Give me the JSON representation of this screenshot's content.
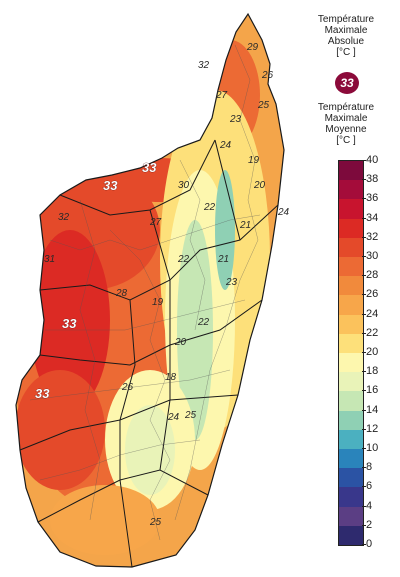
{
  "legend": {
    "abs_title": "Température\nMaximale\nAbsolue\n[°C ]",
    "abs_badge": "33",
    "mean_title": "Température\nMaximale\nMoyenne\n[°C ]",
    "ticks": [
      "40",
      "38",
      "36",
      "34",
      "32",
      "30",
      "28",
      "26",
      "24",
      "22",
      "20",
      "18",
      "16",
      "14",
      "12",
      "10",
      "8",
      "6",
      "4",
      "2",
      "0"
    ],
    "colors": [
      "#7d0a3c",
      "#a40c3a",
      "#c8142e",
      "#dc2a24",
      "#e44a2a",
      "#ec6a34",
      "#f18a3c",
      "#f7a64a",
      "#fbc25c",
      "#fde07a",
      "#fdf7ae",
      "#e9f3b8",
      "#c6e7b4",
      "#8fd0b4",
      "#4bb0c0",
      "#2a84bb",
      "#2b53a4",
      "#39378b",
      "#5b3e84",
      "#2e2a6e"
    ]
  },
  "map": {
    "district_labels": [
      "29",
      "32",
      "26",
      "25",
      "27",
      "23",
      "24",
      "19",
      "20",
      "22",
      "21",
      "24",
      "33",
      "32",
      "30",
      "28",
      "31",
      "26",
      "22",
      "21",
      "20",
      "22",
      "23",
      "25",
      "27",
      "24",
      "18",
      "19",
      "25"
    ],
    "absolute_max_labels": [
      "33",
      "33",
      "33",
      "33"
    ],
    "absolute_max_value": "33"
  }
}
